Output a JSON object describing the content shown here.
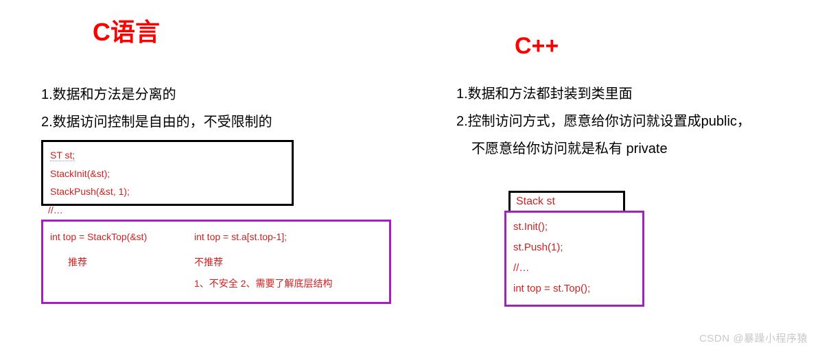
{
  "left": {
    "title": "C语言",
    "point1": "1.数据和方法是分离的",
    "point2": "2.数据访问控制是自由的，不受限制的",
    "code": {
      "l1": "ST st;",
      "l2": "StackInit(&st);",
      "l3": "StackPush(&st, 1);"
    },
    "outside": "//…",
    "purple": {
      "a": "int top = StackTop(&st)",
      "b": "int top = st.a[st.top-1];",
      "rec_a": "推荐",
      "rec_b": "不推荐",
      "reason": "1、不安全   2、需要了解底层结构"
    }
  },
  "right": {
    "title": "C++",
    "point1": "1.数据和方法都封装到类里面",
    "point2": "2.控制访问方式，愿意给你访问就设置成public，",
    "point2b": "不愿意给你访问就是私有 private",
    "black": "Stack st",
    "purple": {
      "l1": "st.Init();",
      "l2": "st.Push(1);",
      "l3": "//…",
      "l4": "int top = st.Top();"
    }
  },
  "watermark": "CSDN @暴躁小程序猿"
}
